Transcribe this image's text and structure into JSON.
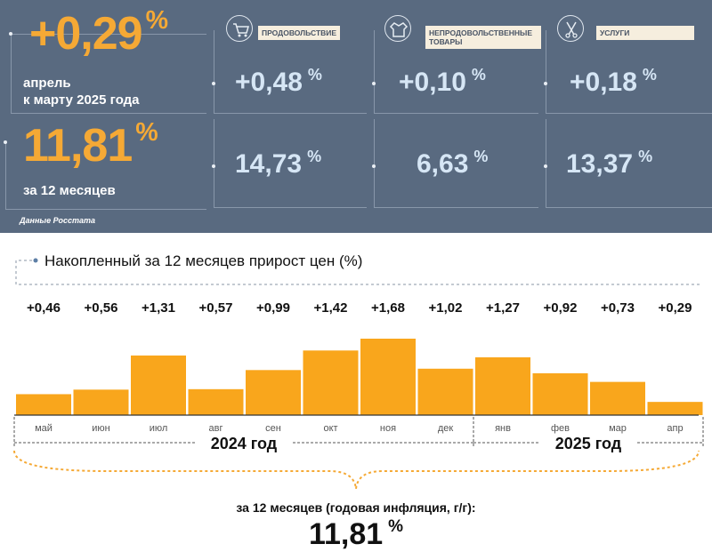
{
  "summary": {
    "monthly": {
      "value": "+0,29",
      "unit": "%",
      "caption_line1": "апрель",
      "caption_line2": "к марту 2025 года"
    },
    "annual": {
      "value": "11,81",
      "unit": "%",
      "caption": "за 12 месяцев"
    }
  },
  "categories": [
    {
      "name": "ПРОДОВОЛЬСТВИЕ",
      "icon": "shopping-cart-icon",
      "monthly": "+0,48",
      "annual": "14,73",
      "unit": "%"
    },
    {
      "name": "НЕПРОДОВОЛЬСТВЕННЫЕ ТОВАРЫ",
      "icon": "clothes-icon",
      "monthly": "+0,10",
      "annual": "6,63",
      "unit": "%"
    },
    {
      "name": "УСЛУГИ",
      "icon": "scissors-comb-icon",
      "monthly": "+0,18",
      "annual": "13,37",
      "unit": "%"
    }
  ],
  "source": "Данные Росстата",
  "colors": {
    "panel": "#596a80",
    "accent": "#f5a935",
    "bar": "#f9a61c",
    "light_value": "#d6e6f5"
  },
  "chart_data": {
    "type": "bar",
    "title": "Накопленный за 12 месяцев прирост цен (%)",
    "categories": [
      "май",
      "июн",
      "июл",
      "авг",
      "сен",
      "окт",
      "ноя",
      "дек",
      "янв",
      "фев",
      "мар",
      "апр"
    ],
    "values": [
      0.46,
      0.56,
      1.31,
      0.57,
      0.99,
      1.42,
      1.68,
      1.02,
      1.27,
      0.92,
      0.73,
      0.29
    ],
    "value_labels": [
      "+0,46",
      "+0,56",
      "+1,31",
      "+0,57",
      "+0,99",
      "+1,42",
      "+1,68",
      "+1,02",
      "+1,27",
      "+0,92",
      "+0,73",
      "+0,29"
    ],
    "groups": [
      {
        "label": "2024 год",
        "count": 8
      },
      {
        "label": "2025 год",
        "count": 4
      }
    ],
    "ylim": [
      0,
      1.68
    ],
    "grid": false,
    "legend": "none"
  },
  "bottom": {
    "caption": "за 12 месяцев (годовая инфляция, г/г):",
    "value": "11,81",
    "unit": "%"
  }
}
